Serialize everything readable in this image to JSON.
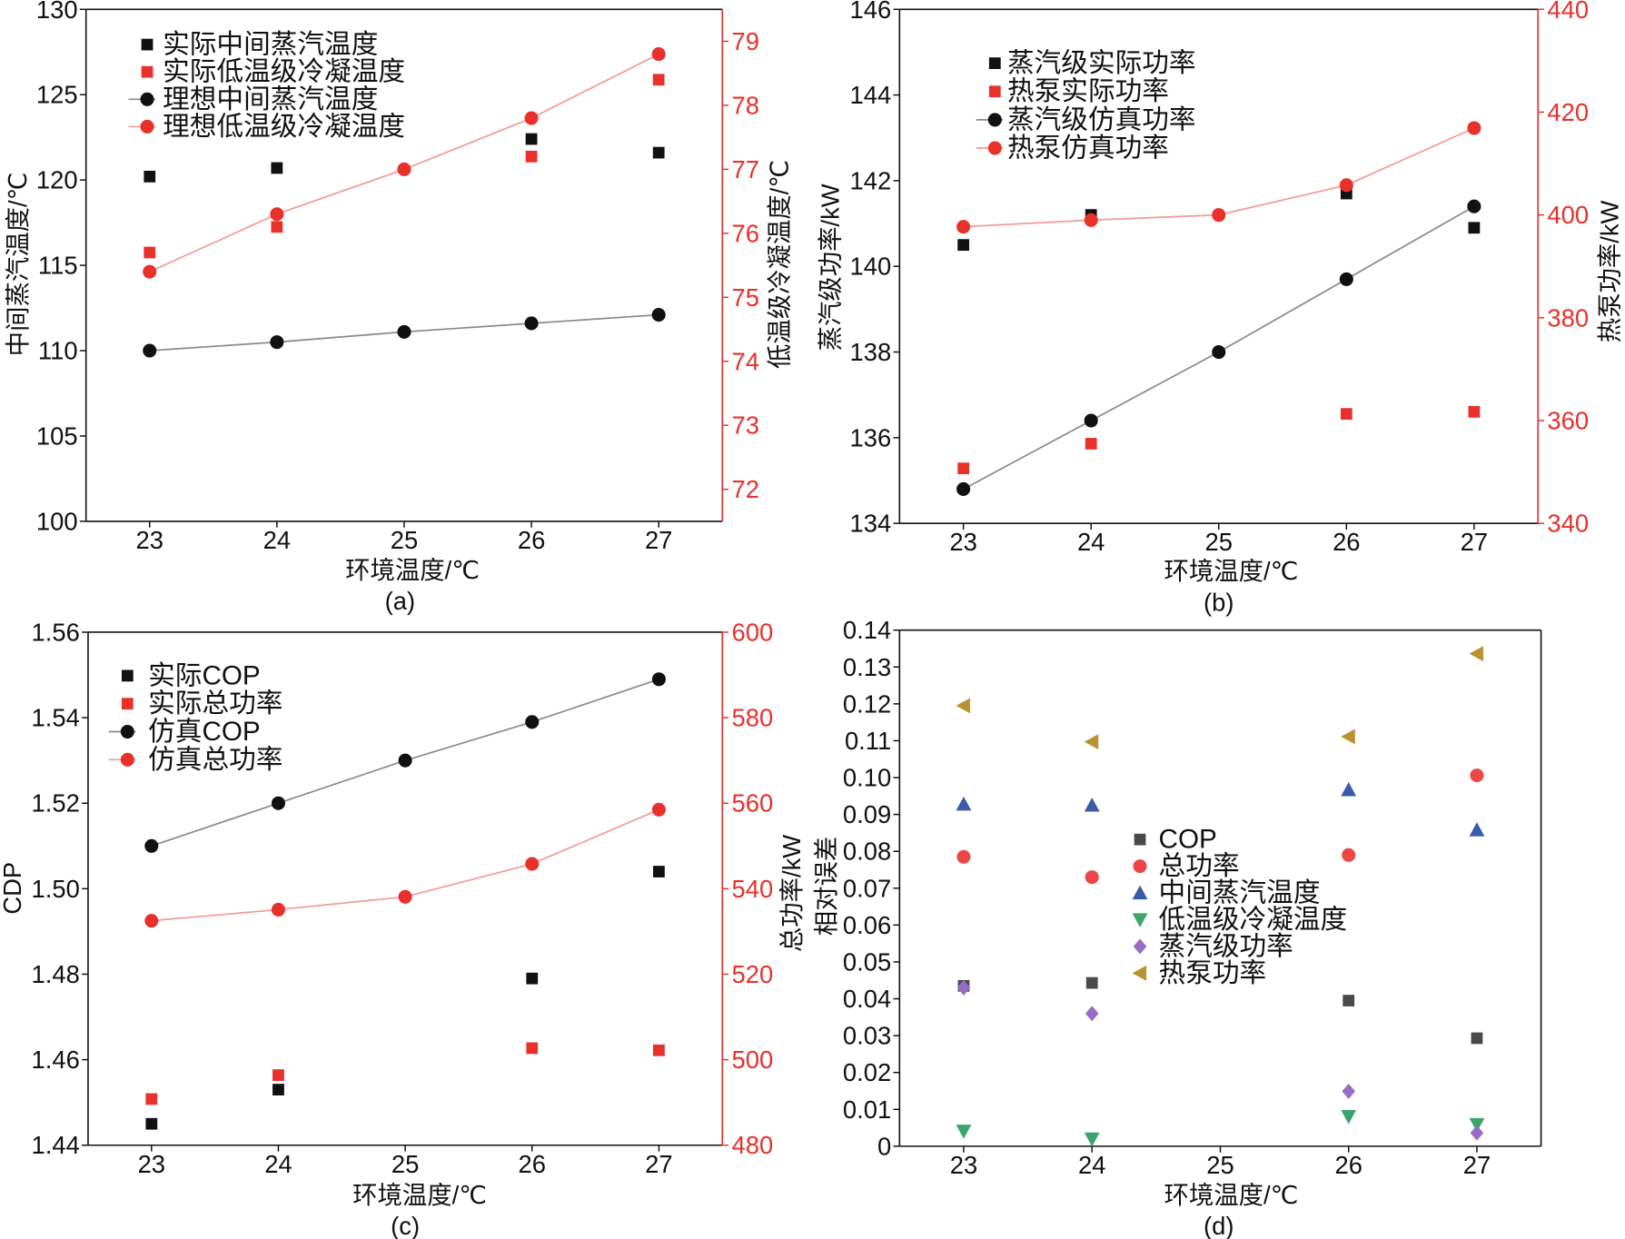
{
  "chart_data": [
    {
      "type": "line",
      "caption": "(a)",
      "xlabel": "环境温度/℃",
      "ylabel": "中间蒸汽温度/℃",
      "ylabel_right": "低温级冷凝温度/℃",
      "xlim": [
        22.5,
        27.5
      ],
      "ylim": [
        100,
        130
      ],
      "ylim_right": [
        71.5,
        79.5
      ],
      "xticks": [
        "23",
        "24",
        "25",
        "26",
        "27"
      ],
      "yticks": [
        "100",
        "105",
        "110",
        "115",
        "120",
        "125",
        "130"
      ],
      "yticks_right": [
        "72",
        "73",
        "74",
        "75",
        "76",
        "77",
        "78",
        "79"
      ],
      "grid": false,
      "axis_colors": [
        "#111111",
        "#e8312b"
      ],
      "series": [
        {
          "name": "实际中间蒸汽温度",
          "axis_index": 0,
          "marker": "square",
          "color": "#111111",
          "line": false,
          "x": [
            23,
            24,
            26,
            27
          ],
          "y": [
            120.2,
            120.7,
            122.4,
            121.6
          ]
        },
        {
          "name": "实际低温级冷凝温度",
          "axis_index": 1,
          "marker": "square",
          "color": "#e8312b",
          "line": false,
          "x": [
            23,
            24,
            26,
            27
          ],
          "y": [
            75.7,
            76.1,
            77.2,
            78.4
          ]
        },
        {
          "name": "理想中间蒸汽温度",
          "axis_index": 0,
          "marker": "circle",
          "color": "#111111",
          "line": true,
          "line_color": "#8a8a8a",
          "x": [
            23,
            24,
            25,
            26,
            27
          ],
          "y": [
            110.0,
            110.5,
            111.1,
            111.6,
            112.1
          ]
        },
        {
          "name": "理想低温级冷凝温度",
          "axis_index": 1,
          "marker": "circle",
          "color": "#e8312b",
          "line": true,
          "line_color": "#f29a96",
          "x": [
            23,
            24,
            25,
            26,
            27
          ],
          "y": [
            75.4,
            76.3,
            77.0,
            77.8,
            78.8
          ]
        }
      ]
    },
    {
      "type": "line",
      "caption": "(b)",
      "xlabel": "环境温度/℃",
      "ylabel": "蒸汽级功率/kW",
      "ylabel_right": "热泵功率/kW",
      "xlim": [
        22.5,
        27.5
      ],
      "ylim": [
        134,
        146
      ],
      "ylim_right": [
        340,
        440
      ],
      "xticks": [
        "23",
        "24",
        "25",
        "26",
        "27"
      ],
      "yticks": [
        "134",
        "136",
        "138",
        "140",
        "142",
        "144",
        "146"
      ],
      "yticks_right": [
        "340",
        "360",
        "380",
        "400",
        "420",
        "440"
      ],
      "grid": false,
      "axis_colors": [
        "#111111",
        "#e8312b"
      ],
      "series": [
        {
          "name": "蒸汽级实际功率",
          "axis_index": 0,
          "marker": "square",
          "color": "#111111",
          "line": false,
          "x": [
            23,
            24,
            26,
            27
          ],
          "y": [
            140.5,
            141.2,
            141.7,
            140.9
          ]
        },
        {
          "name": "热泵实际功率",
          "axis_index": 1,
          "marker": "square",
          "color": "#e8312b",
          "line": false,
          "x": [
            23,
            24,
            26,
            27
          ],
          "y": [
            350.7,
            355.5,
            361.3,
            361.7
          ]
        },
        {
          "name": "蒸汽级仿真功率",
          "axis_index": 0,
          "marker": "circle",
          "color": "#111111",
          "line": true,
          "line_color": "#8a8a8a",
          "x": [
            23,
            24,
            25,
            26,
            27
          ],
          "y": [
            134.8,
            136.4,
            138.0,
            139.7,
            141.4
          ]
        },
        {
          "name": "热泵仿真功率",
          "axis_index": 1,
          "marker": "circle",
          "color": "#e8312b",
          "line": true,
          "line_color": "#f29a96",
          "x": [
            23,
            24,
            25,
            26,
            27
          ],
          "y": [
            397.7,
            399.0,
            400.0,
            405.8,
            416.9
          ]
        }
      ]
    },
    {
      "type": "line",
      "caption": "(c)",
      "xlabel": "环境温度/℃",
      "ylabel": "CDP",
      "ylabel_right": "总功率/kW",
      "xlim": [
        22.5,
        27.5
      ],
      "ylim": [
        1.44,
        1.56
      ],
      "ylim_right": [
        480,
        600
      ],
      "xticks": [
        "23",
        "24",
        "25",
        "26",
        "27"
      ],
      "yticks": [
        "1.44",
        "1.46",
        "1.48",
        "1.50",
        "1.52",
        "1.54",
        "1.56"
      ],
      "yticks_right": [
        "480",
        "500",
        "520",
        "540",
        "560",
        "580",
        "600"
      ],
      "grid": false,
      "axis_colors": [
        "#111111",
        "#e8312b"
      ],
      "series": [
        {
          "name": "实际COP",
          "axis_index": 0,
          "marker": "square",
          "color": "#111111",
          "line": false,
          "x": [
            23,
            24,
            26,
            27
          ],
          "y": [
            1.445,
            1.453,
            1.479,
            1.504
          ]
        },
        {
          "name": "实际总功率",
          "axis_index": 1,
          "marker": "square",
          "color": "#e8312b",
          "line": false,
          "x": [
            23,
            24,
            26,
            27
          ],
          "y": [
            490.8,
            496.4,
            502.7,
            502.2
          ]
        },
        {
          "name": "仿真COP",
          "axis_index": 0,
          "marker": "circle",
          "color": "#111111",
          "line": true,
          "line_color": "#8a8a8a",
          "x": [
            23,
            24,
            25,
            26,
            27
          ],
          "y": [
            1.51,
            1.52,
            1.53,
            1.539,
            1.549
          ]
        },
        {
          "name": "仿真总功率",
          "axis_index": 1,
          "marker": "circle",
          "color": "#e8312b",
          "line": true,
          "line_color": "#f29a96",
          "x": [
            23,
            24,
            25,
            26,
            27
          ],
          "y": [
            532.5,
            535.1,
            538.1,
            545.8,
            558.5
          ]
        }
      ]
    },
    {
      "type": "scatter",
      "caption": "(d)",
      "xlabel": "环境温度/℃",
      "ylabel": "相对误差",
      "xlim": [
        22.5,
        27.5
      ],
      "ylim": [
        0,
        0.14
      ],
      "xticks": [
        "23",
        "24",
        "25",
        "26",
        "27"
      ],
      "yticks": [
        "0",
        "0.01",
        "0.02",
        "0.03",
        "0.04",
        "0.05",
        "0.06",
        "0.07",
        "0.08",
        "0.09",
        "0.10",
        "0.11",
        "0.12",
        "0.13",
        "0.14"
      ],
      "grid": false,
      "axis_colors": [
        "#111111"
      ],
      "series": [
        {
          "name": "COP",
          "axis_index": 0,
          "marker": "square",
          "color": "#4a4a4a",
          "line": false,
          "x": [
            23,
            24,
            26,
            27
          ],
          "y": [
            0.0435,
            0.0443,
            0.0395,
            0.0293
          ]
        },
        {
          "name": "总功率",
          "axis_index": 0,
          "marker": "circle",
          "color": "#ec4646",
          "line": false,
          "x": [
            23,
            24,
            26,
            27
          ],
          "y": [
            0.0785,
            0.073,
            0.079,
            0.1006
          ]
        },
        {
          "name": "中间蒸汽温度",
          "axis_index": 0,
          "marker": "triangle-up",
          "color": "#3a5ca8",
          "line": false,
          "x": [
            23,
            24,
            26,
            27
          ],
          "y": [
            0.0928,
            0.0925,
            0.0967,
            0.0858
          ]
        },
        {
          "name": "低温级冷凝温度",
          "axis_index": 0,
          "marker": "triangle-down",
          "color": "#3ba56c",
          "line": false,
          "x": [
            23,
            24,
            26,
            27
          ],
          "y": [
            0.0041,
            0.002,
            0.0081,
            0.0059
          ]
        },
        {
          "name": "蒸汽级功率",
          "axis_index": 0,
          "marker": "diamond",
          "color": "#9a6cc4",
          "line": false,
          "x": [
            23,
            24,
            26,
            27
          ],
          "y": [
            0.043,
            0.036,
            0.0149,
            0.0036
          ]
        },
        {
          "name": "热泵功率",
          "axis_index": 0,
          "marker": "triangle-left",
          "color": "#bb9230",
          "line": false,
          "x": [
            23,
            24,
            26,
            27
          ],
          "y": [
            0.1195,
            0.1097,
            0.1111,
            0.1336
          ]
        }
      ]
    }
  ]
}
